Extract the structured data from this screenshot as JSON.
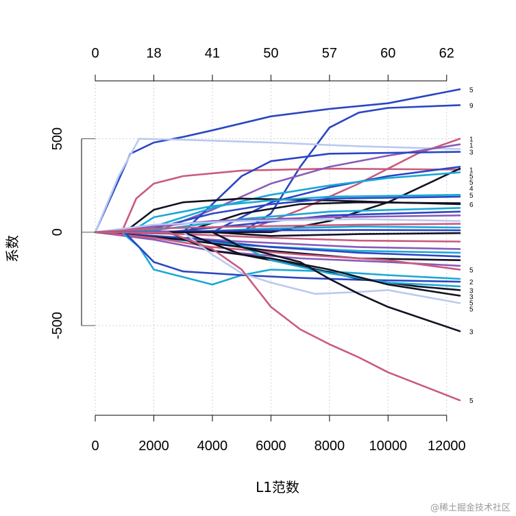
{
  "chart_data": {
    "type": "line",
    "xlabel": "L1范数",
    "ylabel": "系数",
    "xlim": [
      0,
      12450
    ],
    "ylim": [
      -980,
      810
    ],
    "x_ticks": [
      0,
      2000,
      4000,
      6000,
      8000,
      10000,
      12000
    ],
    "y_ticks": [
      -500,
      0,
      500
    ],
    "top_axis": {
      "ticks": [
        0,
        2000,
        4000,
        6000,
        8000,
        10000,
        12000
      ],
      "labels": [
        "0",
        "18",
        "41",
        "50",
        "57",
        "60",
        "62"
      ]
    },
    "grid": true,
    "grid_x": [
      0,
      2000,
      4000,
      6000,
      8000,
      10000,
      12000
    ],
    "grid_y": [
      -500,
      0,
      500
    ],
    "series": [
      {
        "color": "#2a46c4",
        "label": "5",
        "points": [
          [
            0,
            0
          ],
          [
            1200,
            420
          ],
          [
            2000,
            480
          ],
          [
            3000,
            510
          ],
          [
            4000,
            545
          ],
          [
            6000,
            620
          ],
          [
            8000,
            660
          ],
          [
            10000,
            690
          ],
          [
            12450,
            765
          ]
        ]
      },
      {
        "color": "#2a46c4",
        "label": "9",
        "points": [
          [
            0,
            0
          ],
          [
            5000,
            0
          ],
          [
            6000,
            100
          ],
          [
            7000,
            350
          ],
          [
            8000,
            560
          ],
          [
            9000,
            640
          ],
          [
            10000,
            665
          ],
          [
            12450,
            680
          ]
        ]
      },
      {
        "color": "#b9c9f0",
        "label": "",
        "points": [
          [
            0,
            0
          ],
          [
            800,
            300
          ],
          [
            1500,
            500
          ],
          [
            3000,
            495
          ],
          [
            6000,
            480
          ],
          [
            9000,
            460
          ],
          [
            12450,
            445
          ]
        ]
      },
      {
        "color": "#c95a7c",
        "label": "1",
        "points": [
          [
            0,
            0
          ],
          [
            900,
            0
          ],
          [
            1400,
            180
          ],
          [
            2000,
            260
          ],
          [
            3000,
            300
          ],
          [
            5000,
            330
          ],
          [
            8000,
            340
          ],
          [
            12450,
            335
          ]
        ]
      },
      {
        "color": "#c95a7c",
        "label": "1",
        "points": [
          [
            0,
            0
          ],
          [
            5000,
            0
          ],
          [
            7000,
            120
          ],
          [
            9000,
            260
          ],
          [
            11000,
            420
          ],
          [
            12450,
            500
          ]
        ]
      },
      {
        "color": "#8a5ab8",
        "label": "1",
        "points": [
          [
            0,
            0
          ],
          [
            2000,
            0
          ],
          [
            4000,
            120
          ],
          [
            6000,
            260
          ],
          [
            8000,
            350
          ],
          [
            10000,
            410
          ],
          [
            12450,
            470
          ]
        ]
      },
      {
        "color": "#2a46c4",
        "label": "3",
        "points": [
          [
            0,
            0
          ],
          [
            3000,
            0
          ],
          [
            4000,
            150
          ],
          [
            5000,
            300
          ],
          [
            6000,
            380
          ],
          [
            8000,
            420
          ],
          [
            12450,
            430
          ]
        ]
      },
      {
        "color": "#2a46c4",
        "label": "5",
        "points": [
          [
            0,
            0
          ],
          [
            4000,
            0
          ],
          [
            6000,
            160
          ],
          [
            8000,
            240
          ],
          [
            10000,
            300
          ],
          [
            12450,
            350
          ]
        ]
      },
      {
        "color": "#111122",
        "label": "5",
        "points": [
          [
            0,
            0
          ],
          [
            6000,
            0
          ],
          [
            8000,
            60
          ],
          [
            10000,
            160
          ],
          [
            12450,
            340
          ]
        ]
      },
      {
        "color": "#1aa8d6",
        "label": "4",
        "points": [
          [
            0,
            0
          ],
          [
            2000,
            30
          ],
          [
            4000,
            130
          ],
          [
            6000,
            200
          ],
          [
            8000,
            250
          ],
          [
            10000,
            290
          ],
          [
            12450,
            320
          ]
        ]
      },
      {
        "color": "#111122",
        "label": "6",
        "points": [
          [
            0,
            0
          ],
          [
            1000,
            0
          ],
          [
            1500,
            60
          ],
          [
            2000,
            120
          ],
          [
            3000,
            160
          ],
          [
            5000,
            180
          ],
          [
            8000,
            170
          ],
          [
            10000,
            160
          ],
          [
            12450,
            150
          ]
        ]
      },
      {
        "color": "#1aa8d6",
        "label": "5",
        "points": [
          [
            0,
            0
          ],
          [
            1200,
            0
          ],
          [
            2000,
            80
          ],
          [
            4000,
            140
          ],
          [
            6000,
            170
          ],
          [
            8000,
            190
          ],
          [
            12450,
            200
          ]
        ]
      },
      {
        "color": "#2a46c4",
        "label": "",
        "points": [
          [
            0,
            0
          ],
          [
            2000,
            20
          ],
          [
            4000,
            100
          ],
          [
            6000,
            150
          ],
          [
            8000,
            180
          ],
          [
            12450,
            190
          ]
        ]
      },
      {
        "color": "#111122",
        "label": "",
        "points": [
          [
            0,
            0
          ],
          [
            3000,
            0
          ],
          [
            5000,
            100
          ],
          [
            7000,
            150
          ],
          [
            9000,
            160
          ],
          [
            12450,
            155
          ]
        ]
      },
      {
        "color": "#1aa8d6",
        "label": "",
        "points": [
          [
            0,
            0
          ],
          [
            2000,
            10
          ],
          [
            5000,
            70
          ],
          [
            8000,
            110
          ],
          [
            12450,
            130
          ]
        ]
      },
      {
        "color": "#2a46c4",
        "label": "",
        "points": [
          [
            0,
            0
          ],
          [
            2500,
            0
          ],
          [
            5000,
            40
          ],
          [
            8000,
            90
          ],
          [
            12450,
            110
          ]
        ]
      },
      {
        "color": "#8a5ab8",
        "label": "",
        "points": [
          [
            0,
            0
          ],
          [
            2000,
            30
          ],
          [
            4000,
            60
          ],
          [
            8000,
            80
          ],
          [
            12450,
            90
          ]
        ]
      },
      {
        "color": "#b9c9f0",
        "label": "",
        "points": [
          [
            0,
            0
          ],
          [
            2000,
            40
          ],
          [
            5000,
            60
          ],
          [
            9000,
            70
          ],
          [
            12450,
            60
          ]
        ]
      },
      {
        "color": "#c95a7c",
        "label": "",
        "points": [
          [
            0,
            0
          ],
          [
            2000,
            20
          ],
          [
            5000,
            30
          ],
          [
            9000,
            40
          ],
          [
            12450,
            45
          ]
        ]
      },
      {
        "color": "#1aa8d6",
        "label": "",
        "points": [
          [
            0,
            0
          ],
          [
            3000,
            0
          ],
          [
            6000,
            20
          ],
          [
            9000,
            30
          ],
          [
            12450,
            25
          ]
        ]
      },
      {
        "color": "#2a46c4",
        "label": "",
        "points": [
          [
            0,
            0
          ],
          [
            3000,
            5
          ],
          [
            6000,
            10
          ],
          [
            9000,
            12
          ],
          [
            12450,
            10
          ]
        ]
      },
      {
        "color": "#111122",
        "label": "",
        "points": [
          [
            0,
            0
          ],
          [
            4000,
            0
          ],
          [
            6000,
            -20
          ],
          [
            9000,
            -10
          ],
          [
            12450,
            -5
          ]
        ]
      },
      {
        "color": "#c95a7c",
        "label": "",
        "points": [
          [
            0,
            0
          ],
          [
            3000,
            -10
          ],
          [
            6000,
            -30
          ],
          [
            9000,
            -45
          ],
          [
            12450,
            -50
          ]
        ]
      },
      {
        "color": "#8a5ab8",
        "label": "",
        "points": [
          [
            0,
            0
          ],
          [
            2000,
            -20
          ],
          [
            5000,
            -50
          ],
          [
            9000,
            -80
          ],
          [
            12450,
            -90
          ]
        ]
      },
      {
        "color": "#1aa8d6",
        "label": "",
        "points": [
          [
            0,
            0
          ],
          [
            2000,
            -30
          ],
          [
            5000,
            -70
          ],
          [
            9000,
            -100
          ],
          [
            12450,
            -110
          ]
        ]
      },
      {
        "color": "#2a46c4",
        "label": "",
        "points": [
          [
            0,
            0
          ],
          [
            3000,
            -30
          ],
          [
            6000,
            -80
          ],
          [
            9000,
            -110
          ],
          [
            12450,
            -130
          ]
        ]
      },
      {
        "color": "#111122",
        "label": "",
        "points": [
          [
            0,
            0
          ],
          [
            3000,
            -40
          ],
          [
            6000,
            -100
          ],
          [
            9000,
            -140
          ],
          [
            12450,
            -150
          ]
        ]
      },
      {
        "color": "#8a5ab8",
        "label": "",
        "points": [
          [
            0,
            0
          ],
          [
            2000,
            -40
          ],
          [
            4000,
            -100
          ],
          [
            7000,
            -140
          ],
          [
            10000,
            -160
          ],
          [
            12450,
            -180
          ]
        ]
      },
      {
        "color": "#c95a7c",
        "label": "5",
        "points": [
          [
            0,
            0
          ],
          [
            2000,
            -30
          ],
          [
            4000,
            -80
          ],
          [
            7000,
            -120
          ],
          [
            10000,
            -150
          ],
          [
            12450,
            -200
          ]
        ]
      },
      {
        "color": "#1aa8d6",
        "label": "",
        "points": [
          [
            0,
            0
          ],
          [
            900,
            0
          ],
          [
            1500,
            -80
          ],
          [
            2000,
            -200
          ],
          [
            3000,
            -240
          ],
          [
            4000,
            -280
          ],
          [
            5000,
            -230
          ],
          [
            6000,
            -200
          ],
          [
            8000,
            -210
          ],
          [
            10000,
            -230
          ],
          [
            12450,
            -250
          ]
        ]
      },
      {
        "color": "#2a46c4",
        "label": "2",
        "points": [
          [
            0,
            0
          ],
          [
            1000,
            0
          ],
          [
            2000,
            -160
          ],
          [
            3000,
            -210
          ],
          [
            5000,
            -230
          ],
          [
            7000,
            -245
          ],
          [
            9000,
            -255
          ],
          [
            12450,
            -265
          ]
        ]
      },
      {
        "color": "#111122",
        "label": "3",
        "points": [
          [
            0,
            0
          ],
          [
            3000,
            0
          ],
          [
            5000,
            -120
          ],
          [
            7000,
            -180
          ],
          [
            9000,
            -250
          ],
          [
            11000,
            -290
          ],
          [
            12450,
            -310
          ]
        ]
      },
      {
        "color": "#1aa8d6",
        "label": "3",
        "points": [
          [
            0,
            0
          ],
          [
            4000,
            0
          ],
          [
            6000,
            -150
          ],
          [
            8000,
            -220
          ],
          [
            10000,
            -270
          ],
          [
            12450,
            -290
          ]
        ]
      },
      {
        "color": "#111122",
        "label": "5",
        "points": [
          [
            0,
            0
          ],
          [
            2500,
            0
          ],
          [
            4000,
            -100
          ],
          [
            6000,
            -140
          ],
          [
            8000,
            -200
          ],
          [
            10000,
            -280
          ],
          [
            12450,
            -340
          ]
        ]
      },
      {
        "color": "#b9c9f0",
        "label": "5",
        "points": [
          [
            0,
            0
          ],
          [
            3000,
            0
          ],
          [
            4000,
            -120
          ],
          [
            5000,
            -220
          ],
          [
            6000,
            -270
          ],
          [
            7500,
            -330
          ],
          [
            9000,
            -320
          ],
          [
            10000,
            -310
          ],
          [
            12450,
            -380
          ]
        ]
      },
      {
        "color": "#111122",
        "label": "3",
        "points": [
          [
            0,
            0
          ],
          [
            4000,
            0
          ],
          [
            5000,
            -80
          ],
          [
            6000,
            -120
          ],
          [
            7000,
            -160
          ],
          [
            8000,
            -250
          ],
          [
            9000,
            -330
          ],
          [
            10000,
            -400
          ],
          [
            12450,
            -530
          ]
        ]
      },
      {
        "color": "#c95a7c",
        "label": "5",
        "points": [
          [
            0,
            0
          ],
          [
            2500,
            0
          ],
          [
            4000,
            -90
          ],
          [
            5000,
            -200
          ],
          [
            6000,
            -400
          ],
          [
            7000,
            -520
          ],
          [
            8000,
            -600
          ],
          [
            9000,
            -670
          ],
          [
            10000,
            -750
          ],
          [
            12450,
            -900
          ]
        ]
      }
    ]
  },
  "watermark": "@稀土掘金技术社区"
}
